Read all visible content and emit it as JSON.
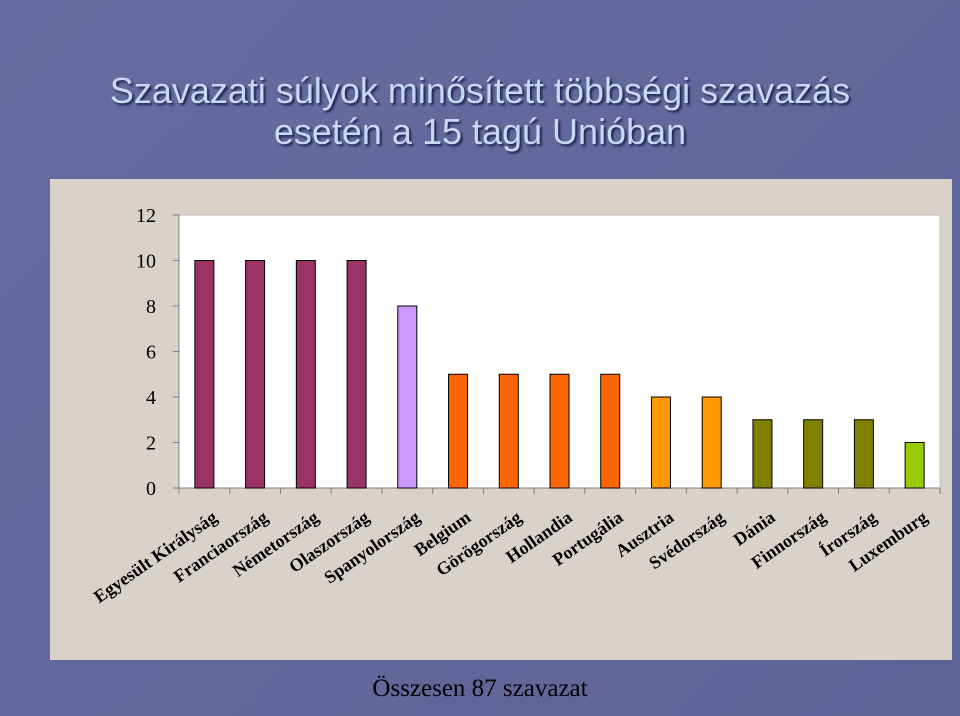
{
  "slide": {
    "title_line1": "Szavazati súlyok minősített többségi szavazás",
    "title_line2": "esetén a 15 tagú Unióban",
    "footer": "Összesen 87 szavazat"
  },
  "chart_data": {
    "type": "bar",
    "title": "",
    "xlabel": "",
    "ylabel": "",
    "ylim": [
      0,
      12
    ],
    "yticks": [
      0,
      2,
      4,
      6,
      8,
      10,
      12
    ],
    "grid": false,
    "categories": [
      "Egyesült Királyság",
      "Franciaország",
      "Németország",
      "Olaszország",
      "Spanyolország",
      "Belgium",
      "Görögország",
      "Hollandia",
      "Portugália",
      "Ausztria",
      "Svédország",
      "Dánia",
      "Finnország",
      "Írország",
      "Luxemburg"
    ],
    "values": [
      10,
      10,
      10,
      10,
      8,
      5,
      5,
      5,
      5,
      4,
      4,
      3,
      3,
      3,
      2
    ],
    "colors": [
      "#993366",
      "#993366",
      "#993366",
      "#993366",
      "#cc99ff",
      "#ff6600",
      "#ff6600",
      "#ff6600",
      "#ff6600",
      "#ff9900",
      "#ff9900",
      "#808000",
      "#808000",
      "#808000",
      "#99cc00"
    ]
  }
}
